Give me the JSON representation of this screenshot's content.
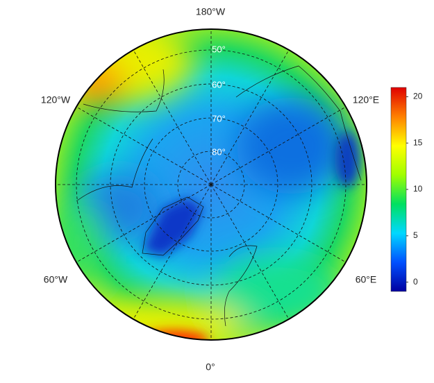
{
  "map": {
    "longitude_labels": {
      "top": "180°W",
      "upper_left": "120°W",
      "upper_right": "120°E",
      "lower_left": "60°W",
      "lower_right": "60°E",
      "bottom": "0°"
    },
    "latitude_labels": [
      "50°",
      "60°",
      "70°",
      "80°"
    ],
    "colorbar": {
      "range": [
        -1,
        21
      ],
      "ticks": [
        0,
        5,
        10,
        15,
        20
      ],
      "colors": [
        "#0000a0",
        "#0050ff",
        "#00d8ff",
        "#00e060",
        "#a0ff00",
        "#ffff00",
        "#ff8000",
        "#e00000"
      ]
    }
  }
}
